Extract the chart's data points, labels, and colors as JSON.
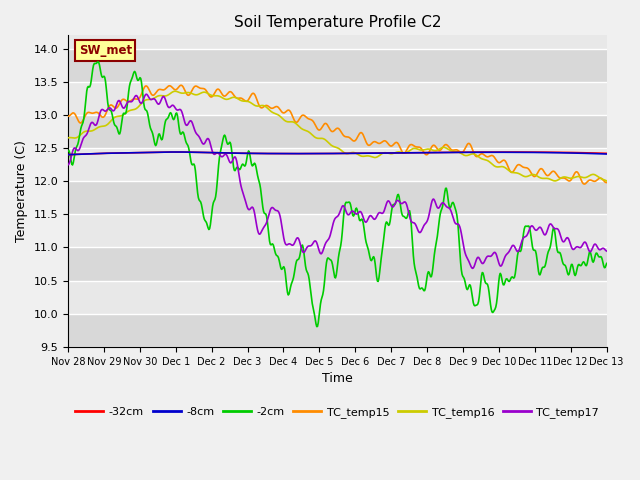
{
  "title": "Soil Temperature Profile C2",
  "xlabel": "Time",
  "ylabel": "Temperature (C)",
  "ylim": [
    9.5,
    14.2
  ],
  "xlim": [
    0,
    360
  ],
  "plot_bg_color": "#e8e8e8",
  "annotation_text": "SW_met",
  "annotation_bg": "#ffff99",
  "annotation_border": "#8b0000",
  "annotation_text_color": "#8b0000",
  "series_colors": {
    "32cm": "#ff0000",
    "8cm": "#0000cd",
    "2cm": "#00cc00",
    "TC_temp15": "#ff8c00",
    "TC_temp16": "#cccc00",
    "TC_temp17": "#9900cc"
  },
  "legend_labels": [
    "-32cm",
    "-8cm",
    "-2cm",
    "TC_temp15",
    "TC_temp16",
    "TC_temp17"
  ],
  "tick_labels": [
    "Nov 28",
    "Nov 29",
    "Nov 30",
    "Dec 1",
    "Dec 2",
    "Dec 3",
    "Dec 4",
    "Dec 5",
    "Dec 6",
    "Dec 7",
    "Dec 8",
    "Dec 9",
    "Dec 10",
    "Dec 11",
    "Dec 12",
    "Dec 13"
  ],
  "yticks": [
    9.5,
    10.0,
    10.5,
    11.0,
    11.5,
    12.0,
    12.5,
    13.0,
    13.5,
    14.0
  ]
}
